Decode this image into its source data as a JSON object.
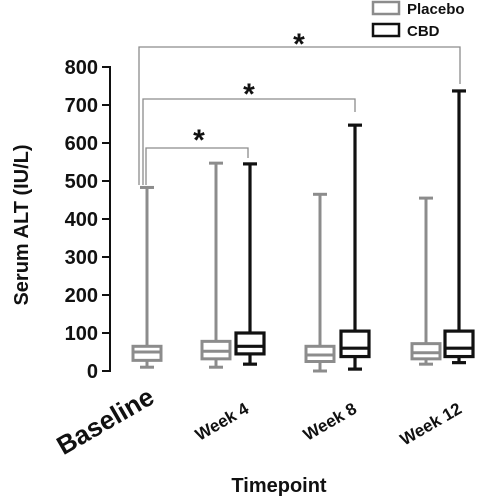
{
  "chart_data": {
    "type": "box",
    "xlabel": "Timepoint",
    "ylabel": "Serum ALT (IU/L)",
    "ylim": [
      0,
      800
    ],
    "yticks": [
      "0",
      "100",
      "200",
      "300",
      "400",
      "500",
      "600",
      "700",
      "800"
    ],
    "categories": [
      "Baseline",
      "Week 4",
      "Week 8",
      "Week 12"
    ],
    "legend": {
      "placement": "top-right",
      "entries": [
        "Placebo",
        "CBD"
      ]
    },
    "series": [
      {
        "name": "Placebo",
        "color": "#8c8c8c",
        "boxes": [
          {
            "category": "Baseline",
            "min": 10,
            "q1": 28,
            "median": 50,
            "q3": 65,
            "max": 483
          },
          {
            "category": "Week 4",
            "min": 10,
            "q1": 32,
            "median": 52,
            "q3": 78,
            "max": 547
          },
          {
            "category": "Week 8",
            "min": 0,
            "q1": 25,
            "median": 42,
            "q3": 65,
            "max": 465
          },
          {
            "category": "Week 12",
            "min": 18,
            "q1": 32,
            "median": 48,
            "q3": 72,
            "max": 455
          }
        ]
      },
      {
        "name": "CBD",
        "color": "#111111",
        "boxes": [
          {
            "category": "Week 4",
            "min": 18,
            "q1": 45,
            "median": 65,
            "q3": 100,
            "max": 545
          },
          {
            "category": "Week 8",
            "min": 5,
            "q1": 38,
            "median": 60,
            "q3": 105,
            "max": 647
          },
          {
            "category": "Week 12",
            "min": 22,
            "q1": 38,
            "median": 60,
            "q3": 105,
            "max": 737
          }
        ]
      }
    ],
    "comparisons": [
      {
        "from": "Baseline",
        "to": "Week 4",
        "label": "*"
      },
      {
        "from": "Baseline",
        "to": "Week 8",
        "label": "*"
      },
      {
        "from": "Baseline",
        "to": "Week 12",
        "label": "*"
      }
    ]
  }
}
